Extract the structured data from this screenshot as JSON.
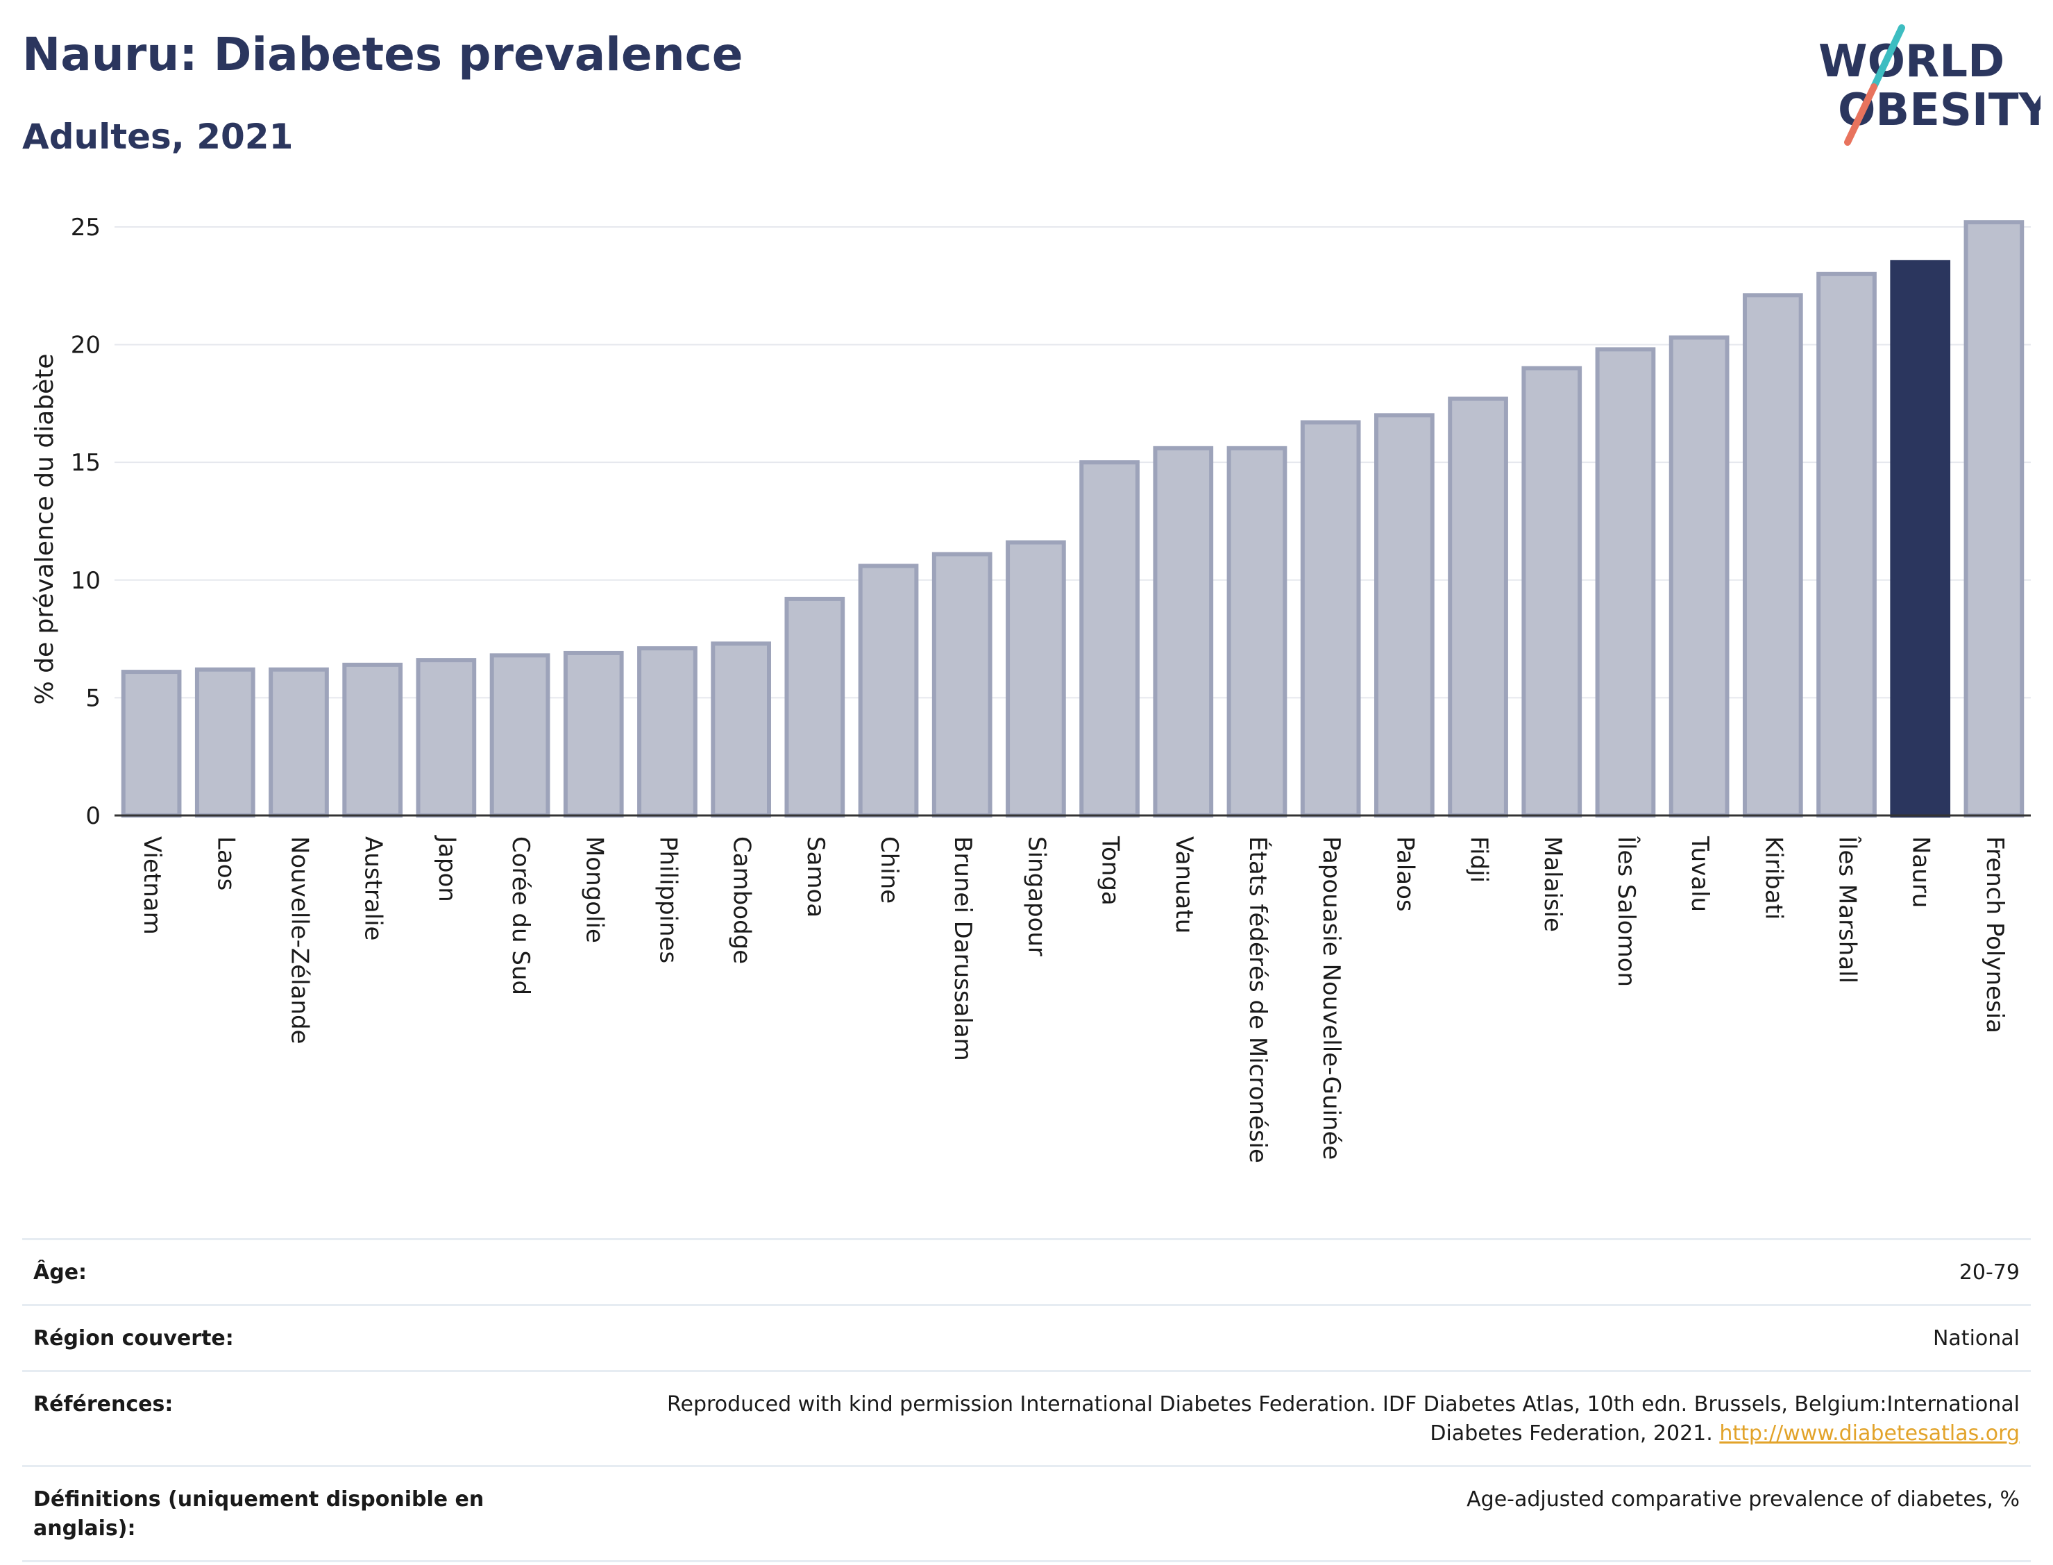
{
  "header": {
    "title": "Nauru: Diabetes prevalence",
    "subtitle": "Adultes, 2021"
  },
  "logo": {
    "line1": "WORLD",
    "line2": "OBESITY",
    "colors": {
      "text": "#2b365e",
      "slash_top": "#3dbdc1",
      "slash_bottom": "#e8735d"
    }
  },
  "colors": {
    "bar": "#bcc0ce",
    "bar_border": "#9da3ba",
    "highlight": "#2b365e",
    "grid": "#e6e8ee"
  },
  "chart_data": {
    "type": "bar",
    "title": "",
    "ylabel": "% de prévalence du diabète",
    "xlabel": "",
    "ylim": [
      0,
      25.5
    ],
    "yticks": [
      0,
      5,
      10,
      15,
      20,
      25
    ],
    "grid": true,
    "highlight": "Nauru",
    "categories": [
      "Vietnam",
      "Laos",
      "Nouvelle-Zélande",
      "Australie",
      "Japon",
      "Corée du Sud",
      "Mongolie",
      "Philippines",
      "Cambodge",
      "Samoa",
      "Chine",
      "Brunei Darussalam",
      "Singapour",
      "Tonga",
      "Vanuatu",
      "États fédérés de Micronésie",
      "Papouasie Nouvelle-Guinée",
      "Palaos",
      "Fidji",
      "Malaisie",
      "Îles Salomon",
      "Tuvalu",
      "Kiribati",
      "Îles Marshall",
      "Nauru",
      "French Polynesia"
    ],
    "values": [
      6.1,
      6.2,
      6.2,
      6.4,
      6.6,
      6.8,
      6.9,
      7.1,
      7.3,
      9.2,
      10.6,
      11.1,
      11.6,
      15.0,
      15.6,
      15.6,
      16.7,
      17.0,
      17.7,
      19.0,
      19.8,
      20.3,
      22.1,
      23.0,
      23.5,
      25.2
    ]
  },
  "info": {
    "rows": [
      {
        "label": "Âge:",
        "value": "20-79"
      },
      {
        "label": "Région couverte:",
        "value": "National"
      },
      {
        "label": "Références:",
        "value": "Reproduced with kind permission International Diabetes Federation.  IDF Diabetes Atlas, 10th edn. Brussels, Belgium:International Diabetes Federation, 2021.",
        "link": "http://www.diabetesatlas.org"
      },
      {
        "label": "Définitions (uniquement disponible en anglais):",
        "value": "Age-adjusted comparative prevalence of diabetes, %"
      }
    ]
  }
}
